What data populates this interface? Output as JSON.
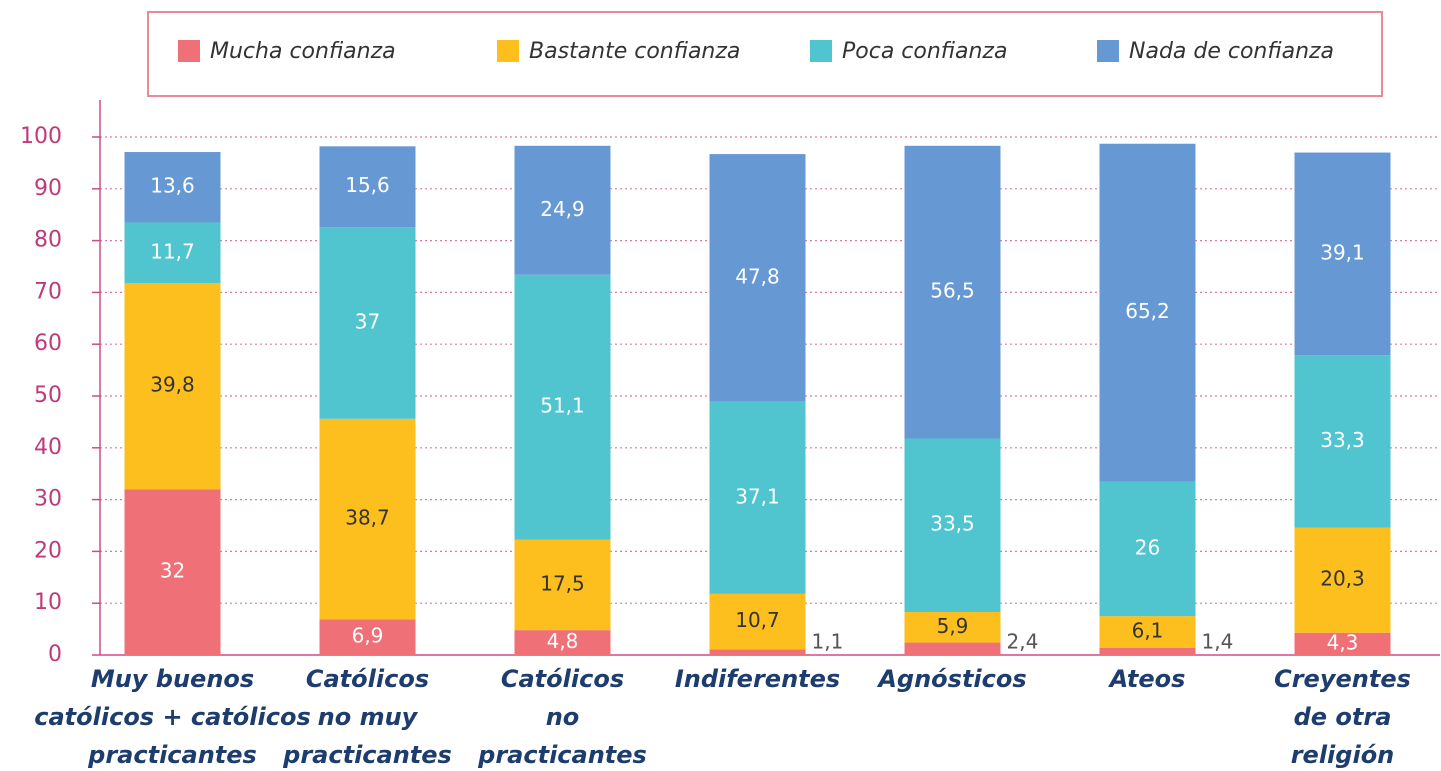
{
  "chart_data": {
    "type": "stacked_bar",
    "categories": [
      "Muy buenos\ncatólicos + católicos\npracticantes",
      "Católicos\nno muy\npracticantes",
      "Católicos\nno\npracticantes",
      "Indiferentes",
      "Agnósticos",
      "Ateos",
      "Creyentes\nde otra\nreligión"
    ],
    "series": [
      {
        "name": "Mucha confianza",
        "color": "#f07078",
        "values": [
          32,
          6.9,
          4.8,
          1.1,
          2.4,
          1.4,
          4.3
        ],
        "value_labels": [
          "32",
          "6,9",
          "4,8",
          "1,1",
          "2,4",
          "1,4",
          "4,3"
        ]
      },
      {
        "name": "Bastante confianza",
        "color": "#fcbf1e",
        "values": [
          39.8,
          38.7,
          17.5,
          10.7,
          5.9,
          6.1,
          20.3
        ],
        "value_labels": [
          "39,8",
          "38,7",
          "17,5",
          "10,7",
          "5,9",
          "6,1",
          "20,3"
        ]
      },
      {
        "name": "Poca confianza",
        "color": "#50c4cf",
        "values": [
          11.7,
          37,
          51.1,
          37.1,
          33.5,
          26,
          33.3
        ],
        "value_labels": [
          "11,7",
          "37",
          "51,1",
          "37,1",
          "33,5",
          "26",
          "33,3"
        ]
      },
      {
        "name": "Nada de confianza",
        "color": "#6699d3",
        "values": [
          13.6,
          15.6,
          24.9,
          47.8,
          56.5,
          65.2,
          39.1
        ],
        "value_labels": [
          "13,6",
          "15,6",
          "24,9",
          "47,8",
          "56,5",
          "65,2",
          "39,1"
        ]
      }
    ],
    "ylim": [
      0,
      100
    ],
    "yticks": [
      0,
      10,
      20,
      30,
      40,
      50,
      60,
      70,
      80,
      90,
      100
    ],
    "grid": true,
    "legend": "top"
  }
}
